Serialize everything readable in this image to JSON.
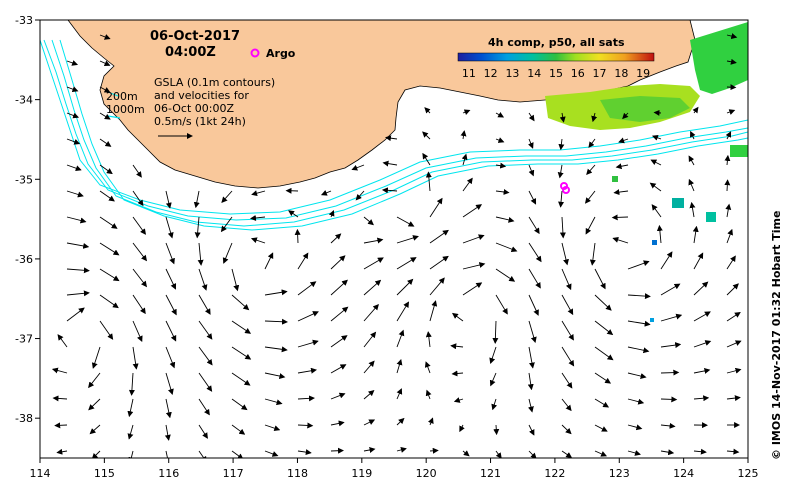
{
  "map": {
    "date": "06-Oct-2017",
    "time": "04:00Z",
    "argo_label": "Argo",
    "depth_labels": [
      "200m",
      "1000m"
    ],
    "caption_lines": [
      "GSLA (0.1m contours)",
      "and velocities for",
      "06-Oct 00:00Z",
      "0.5m/s (1kt 24h)"
    ],
    "credit": "© IMOS 14-Nov-2017 01:32 Hobart Time",
    "lon_ticks": [
      114,
      115,
      116,
      117,
      118,
      119,
      120,
      121,
      122,
      123,
      124,
      125
    ],
    "lat_ticks": [
      -33,
      -34,
      -35,
      -36,
      -37,
      -38
    ],
    "lon_range": [
      114,
      125
    ],
    "lat_range": [
      -38.5,
      -33
    ]
  },
  "colorbar": {
    "title": "4h comp, p50, all sats",
    "ticks": [
      11,
      12,
      13,
      14,
      15,
      16,
      17,
      18,
      19
    ],
    "range": [
      10.5,
      19.5
    ],
    "colors": [
      "#1f1f9f",
      "#0050d0",
      "#00a0e0",
      "#00c0a0",
      "#30c040",
      "#a0e020",
      "#f0e020",
      "#f0a020",
      "#e05010",
      "#b01010"
    ]
  },
  "colors": {
    "land": "#f9c89b",
    "contour": "#00e5ee",
    "argo": "#ff00ff",
    "sst_green": "#30d040",
    "sst_lime": "#a8e020"
  }
}
